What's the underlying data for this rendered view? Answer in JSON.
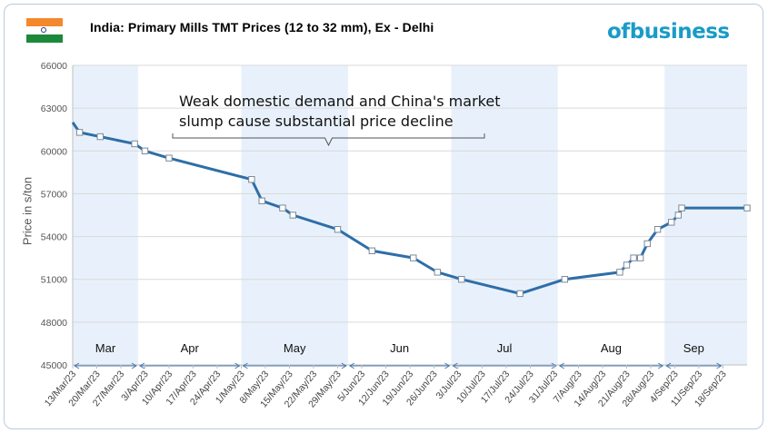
{
  "header": {
    "title": "India: Primary Mills TMT Prices (12 to 32 mm), Ex - Delhi",
    "logo_text": "ofbusiness",
    "flag": {
      "top": "#f4882c",
      "middle": "#ffffff",
      "bottom": "#1a8a3a",
      "wheel": "#1f3b8a"
    }
  },
  "annotation": {
    "line1": "Weak domestic demand and China's market",
    "line2": "slump cause substantial price decline"
  },
  "chart_data": {
    "type": "line",
    "title": "India: Primary Mills TMT Prices (12 to 32 mm), Ex - Delhi",
    "xlabel": "",
    "ylabel": "Price in s/ton",
    "ylim": [
      45000,
      66000
    ],
    "yticks": [
      45000,
      48000,
      51000,
      54000,
      57000,
      60000,
      63000,
      66000
    ],
    "grid": true,
    "x_tick_labels": [
      "13/Mar/23",
      "20/Mar/23",
      "27/Mar/23",
      "3/Apr/23",
      "10/Apr/23",
      "17/Apr/23",
      "24/Apr/23",
      "1/May/23",
      "8/May/23",
      "15/May/23",
      "22/May/23",
      "29/May/23",
      "5/Jun/23",
      "12/Jun/23",
      "19/Jun/23",
      "26/Jun/23",
      "3/Jul/23",
      "10/Jul/23",
      "17/Jul/23",
      "24/Jul/23",
      "31/Jul/23",
      "7/Aug/23",
      "14/Aug/23",
      "21/Aug/23",
      "28/Aug/23",
      "4/Sep/23",
      "11/Sep/23",
      "18/Sep/23"
    ],
    "months": [
      {
        "name": "Mar",
        "start": "2023-03-13",
        "end": "2023-04-01",
        "shaded": true
      },
      {
        "name": "Apr",
        "start": "2023-04-01",
        "end": "2023-05-01",
        "shaded": false
      },
      {
        "name": "May",
        "start": "2023-05-01",
        "end": "2023-06-01",
        "shaded": true
      },
      {
        "name": "Jun",
        "start": "2023-06-01",
        "end": "2023-07-01",
        "shaded": false
      },
      {
        "name": "Jul",
        "start": "2023-07-01",
        "end": "2023-08-01",
        "shaded": true
      },
      {
        "name": "Aug",
        "start": "2023-08-01",
        "end": "2023-09-01",
        "shaded": false
      },
      {
        "name": "Sep",
        "start": "2023-09-01",
        "end": "2023-09-18",
        "shaded": true
      }
    ],
    "line_color": "#2e6ea8",
    "shade_color": "#e8f1fb",
    "series": [
      {
        "name": "",
        "points": [
          {
            "x": "2023-03-13",
            "y": 62000
          },
          {
            "x": "2023-03-15",
            "y": 61300
          },
          {
            "x": "2023-03-21",
            "y": 61000
          },
          {
            "x": "2023-03-31",
            "y": 60500
          },
          {
            "x": "2023-04-03",
            "y": 60000
          },
          {
            "x": "2023-04-10",
            "y": 59500
          },
          {
            "x": "2023-05-04",
            "y": 58000
          },
          {
            "x": "2023-05-07",
            "y": 56500
          },
          {
            "x": "2023-05-13",
            "y": 56000
          },
          {
            "x": "2023-05-16",
            "y": 55500
          },
          {
            "x": "2023-05-29",
            "y": 54500
          },
          {
            "x": "2023-06-08",
            "y": 53000
          },
          {
            "x": "2023-06-20",
            "y": 52500
          },
          {
            "x": "2023-06-27",
            "y": 51500
          },
          {
            "x": "2023-07-04",
            "y": 51000
          },
          {
            "x": "2023-07-21",
            "y": 50000
          },
          {
            "x": "2023-08-03",
            "y": 51000
          },
          {
            "x": "2023-08-19",
            "y": 51500
          },
          {
            "x": "2023-08-21",
            "y": 52000
          },
          {
            "x": "2023-08-23",
            "y": 52500
          },
          {
            "x": "2023-08-25",
            "y": 52500
          },
          {
            "x": "2023-08-27",
            "y": 53500
          },
          {
            "x": "2023-08-30",
            "y": 54500
          },
          {
            "x": "2023-09-03",
            "y": 55000
          },
          {
            "x": "2023-09-05",
            "y": 55500
          },
          {
            "x": "2023-09-06",
            "y": 56000
          },
          {
            "x": "2023-09-25",
            "y": 56000
          }
        ]
      }
    ]
  }
}
